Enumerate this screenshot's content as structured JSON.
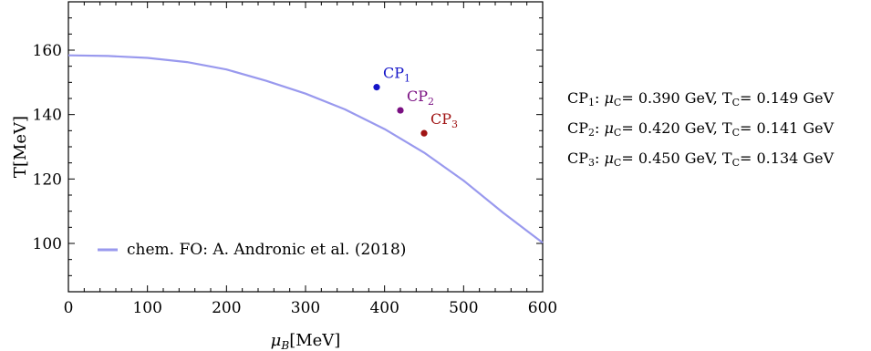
{
  "chart_data": {
    "type": "line",
    "xlabel": "μB[MeV]",
    "xlabel_main": "μ",
    "xlabel_sub": "B",
    "xlabel_unit": "[MeV]",
    "ylabel": "T[MeV]",
    "xlim": [
      0,
      600
    ],
    "ylim": [
      85,
      175
    ],
    "x_ticks": [
      0,
      100,
      200,
      300,
      400,
      500,
      600
    ],
    "y_ticks": [
      100,
      120,
      140,
      160
    ],
    "grid": false,
    "legend_position": "bottom-left",
    "series": [
      {
        "name": "chem. FO: A. Andronic et al. (2018)",
        "color": "#9999ee",
        "x": [
          0,
          50,
          100,
          150,
          200,
          250,
          300,
          350,
          400,
          450,
          500,
          550,
          600
        ],
        "y": [
          158.4,
          158.2,
          157.6,
          156.3,
          154.0,
          150.5,
          146.5,
          141.6,
          135.5,
          128.2,
          119.5,
          109.5,
          100.2
        ]
      }
    ],
    "points": [
      {
        "label": "CP",
        "sub": "1",
        "x": 390,
        "y": 148.5,
        "color": "#1414c8"
      },
      {
        "label": "CP",
        "sub": "2",
        "x": 420,
        "y": 141.3,
        "color": "#7a1082"
      },
      {
        "label": "CP",
        "sub": "3",
        "x": 450,
        "y": 134.2,
        "color": "#a01414"
      }
    ]
  },
  "side_info": [
    {
      "name": "CP",
      "sub": "1",
      "mu_sym": "μ",
      "c_sub": "C",
      "mu_text": "= 0.390 GeV,",
      "t_sym": "T",
      "t_text": "= 0.149 GeV"
    },
    {
      "name": "CP",
      "sub": "2",
      "mu_sym": "μ",
      "c_sub": "C",
      "mu_text": "= 0.420 GeV,",
      "t_sym": "T",
      "t_text": "= 0.141 GeV"
    },
    {
      "name": "CP",
      "sub": "3",
      "mu_sym": "μ",
      "c_sub": "C",
      "mu_text": "= 0.450 GeV,",
      "t_sym": "T",
      "t_text": "= 0.134 GeV"
    }
  ]
}
